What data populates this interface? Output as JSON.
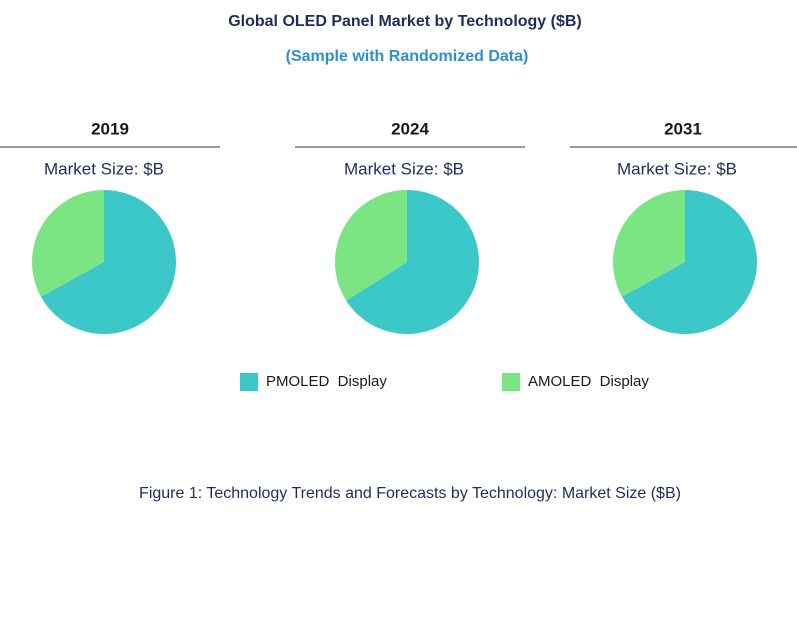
{
  "title": "Global OLED Panel Market by Technology ($B)",
  "subtitle": "(Sample with Randomized Data)",
  "caption": "Figure 1: Technology Trends and Forecasts by Technology: Market Size ($B)",
  "chart_data": [
    {
      "type": "pie",
      "title": "2019",
      "subtitle": "Market Size: $B",
      "categories": [
        "PMOLED  Display",
        "AMOLED  Display"
      ],
      "values": [
        67,
        33
      ],
      "colors": [
        "#3cc8c8",
        "#7ae582"
      ]
    },
    {
      "type": "pie",
      "title": "2024",
      "subtitle": "Market Size: $B",
      "categories": [
        "PMOLED  Display",
        "AMOLED  Display"
      ],
      "values": [
        66,
        34
      ],
      "colors": [
        "#3cc8c8",
        "#7ae582"
      ]
    },
    {
      "type": "pie",
      "title": "2031",
      "subtitle": "Market Size: $B",
      "categories": [
        "PMOLED  Display",
        "AMOLED  Display"
      ],
      "values": [
        67,
        33
      ],
      "colors": [
        "#3cc8c8",
        "#7ae582"
      ]
    }
  ]
}
